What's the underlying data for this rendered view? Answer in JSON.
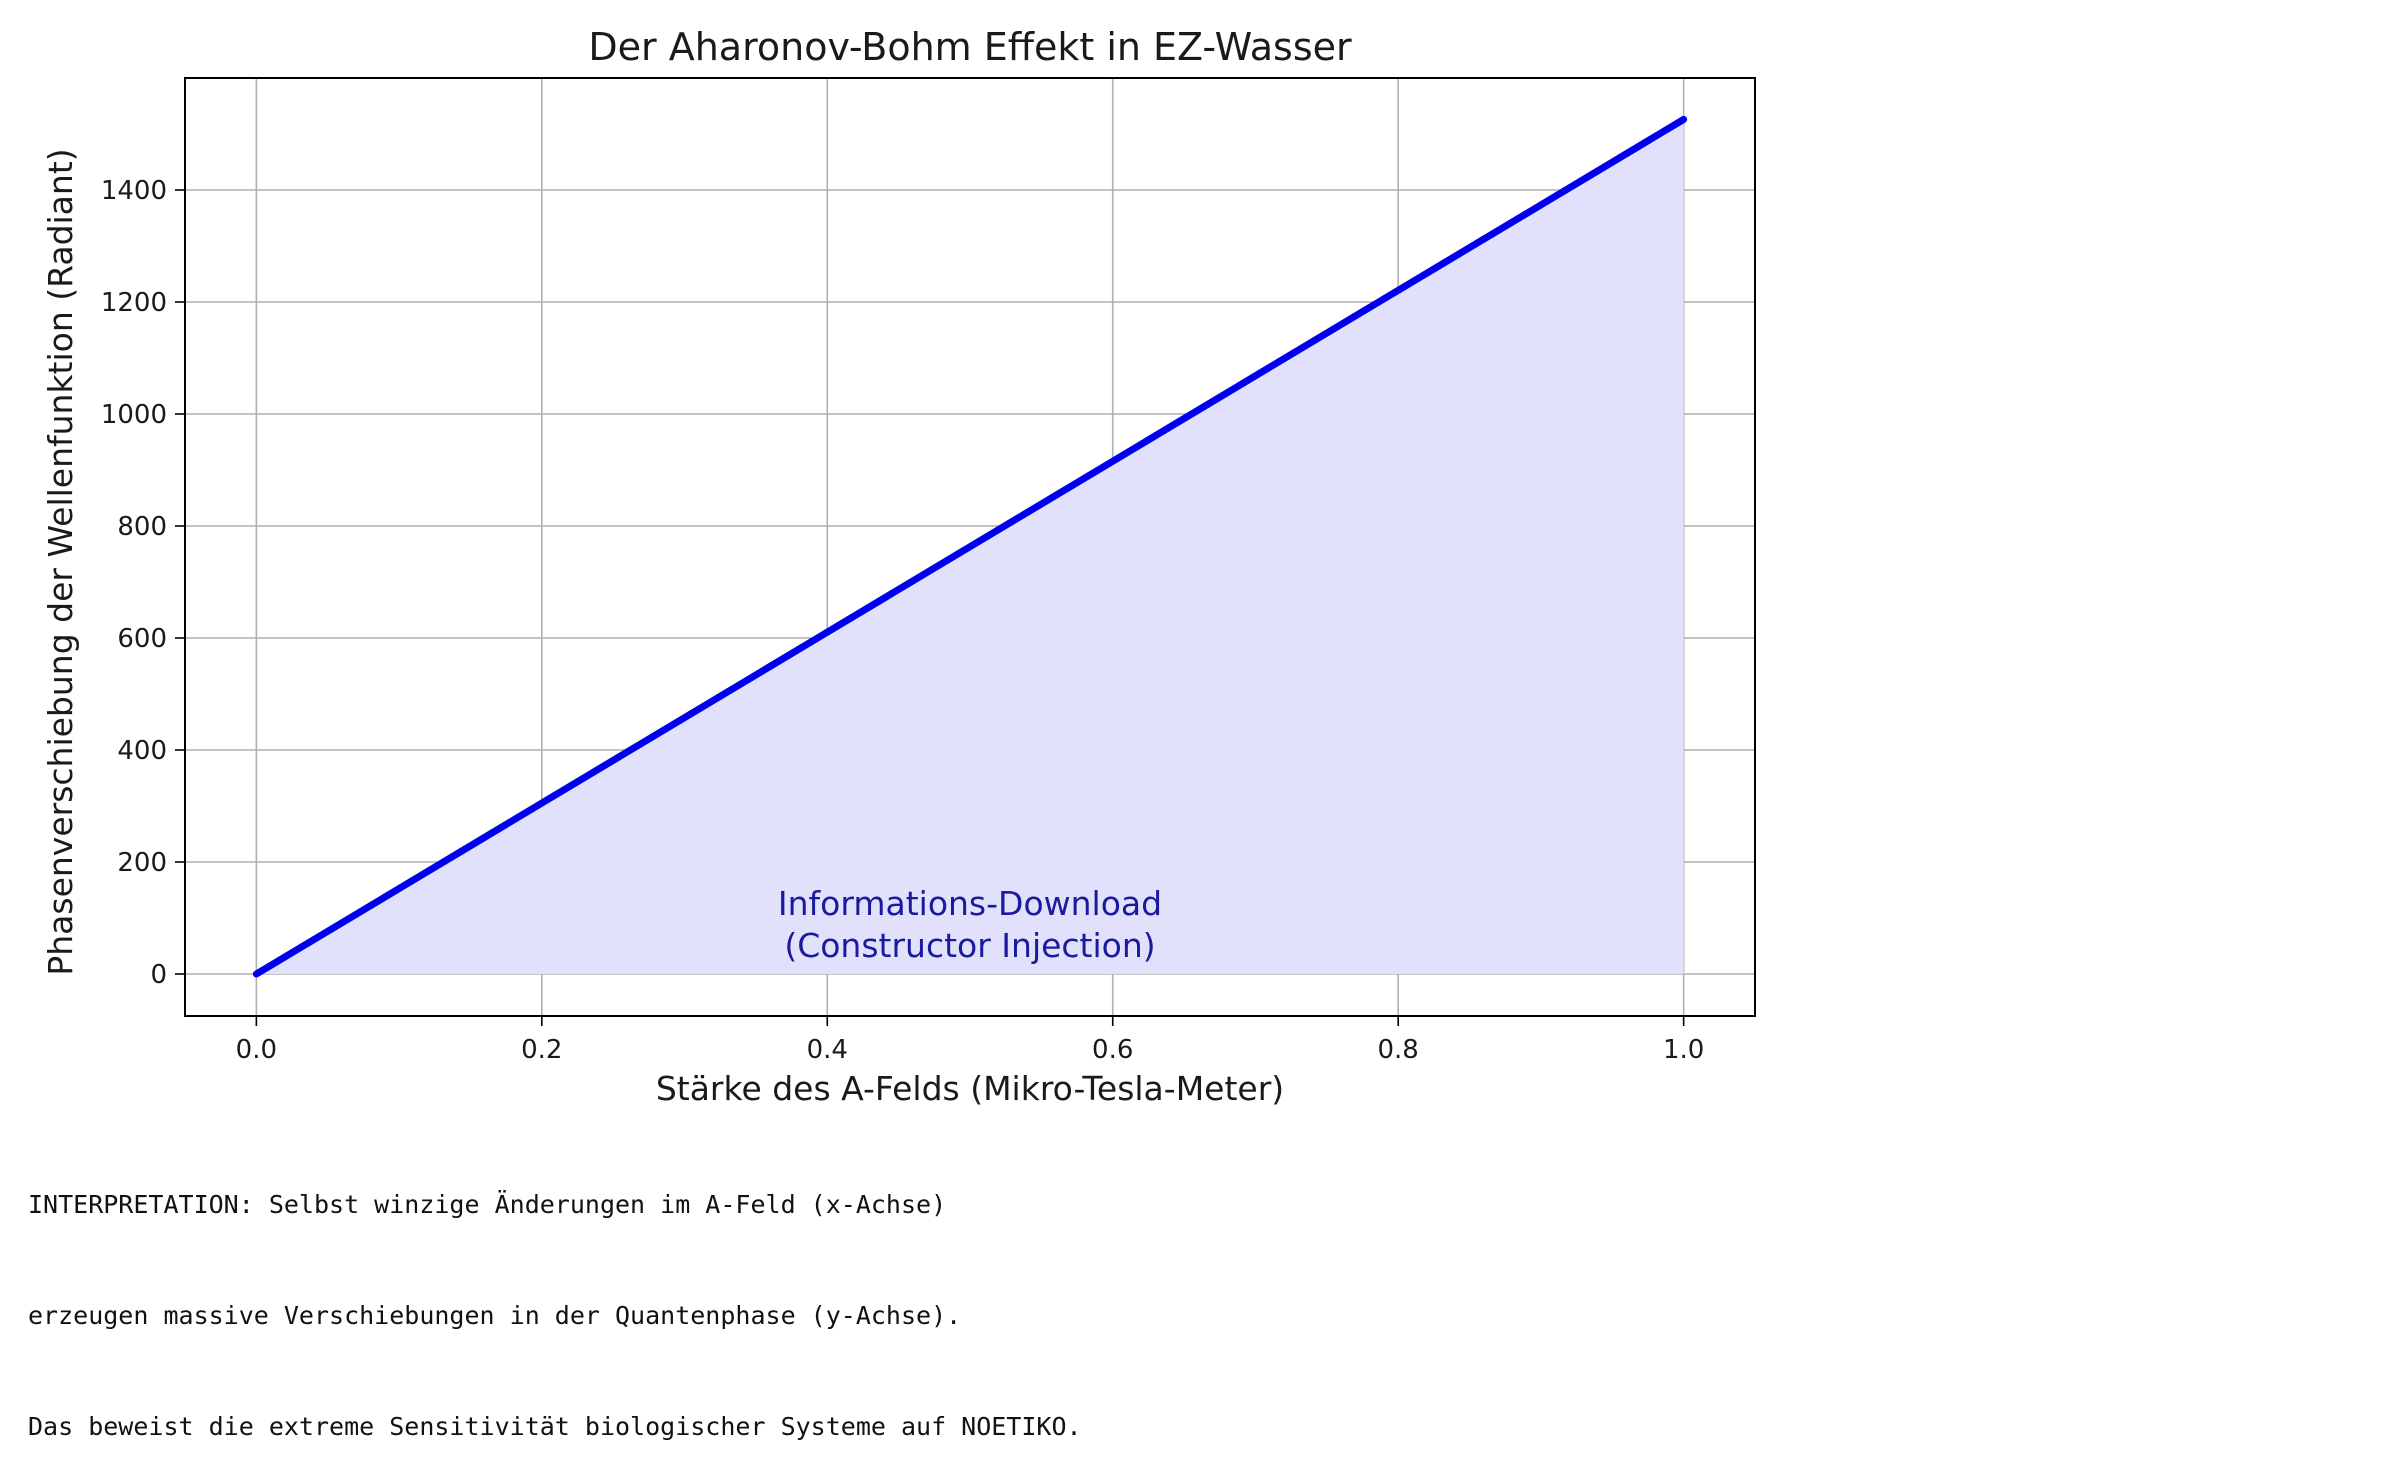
{
  "chart_data": {
    "type": "area",
    "title": "Der Aharonov-Bohm Effekt in EZ-Wasser",
    "xlabel": "Stärke des A-Felds (Mikro-Tesla-Meter)",
    "ylabel": "Phasenverschiebung der Wellenfunktion (Radiant)",
    "xlim": [
      -0.05,
      1.05
    ],
    "ylim": [
      -75,
      1600
    ],
    "x_ticks": [
      0.0,
      0.2,
      0.4,
      0.6,
      0.8,
      1.0
    ],
    "x_tick_labels": [
      "0.0",
      "0.2",
      "0.4",
      "0.6",
      "0.8",
      "1.0"
    ],
    "y_ticks": [
      0,
      200,
      400,
      600,
      800,
      1000,
      1200,
      1400
    ],
    "y_tick_labels": [
      "0",
      "200",
      "400",
      "600",
      "800",
      "1000",
      "1200",
      "1400"
    ],
    "grid": true,
    "series": [
      {
        "x": [
          0.0,
          1.0
        ],
        "y": [
          0,
          1526
        ],
        "color": "#0000ee",
        "fill_color": "#e1e1fb",
        "fill_to": 0
      }
    ],
    "annotation": {
      "lines": [
        "Informations-Download",
        "(Constructor Injection)"
      ],
      "x": 0.5,
      "y": 30,
      "color": "#1a1aa0"
    }
  },
  "interpretation": [
    "INTERPRETATION: Selbst winzige Änderungen im A-Feld (x-Achse)",
    "erzeugen massive Verschiebungen in der Quantenphase (y-Achse).",
    "Das beweist die extreme Sensitivität biologischer Systeme auf NOETIKO."
  ]
}
